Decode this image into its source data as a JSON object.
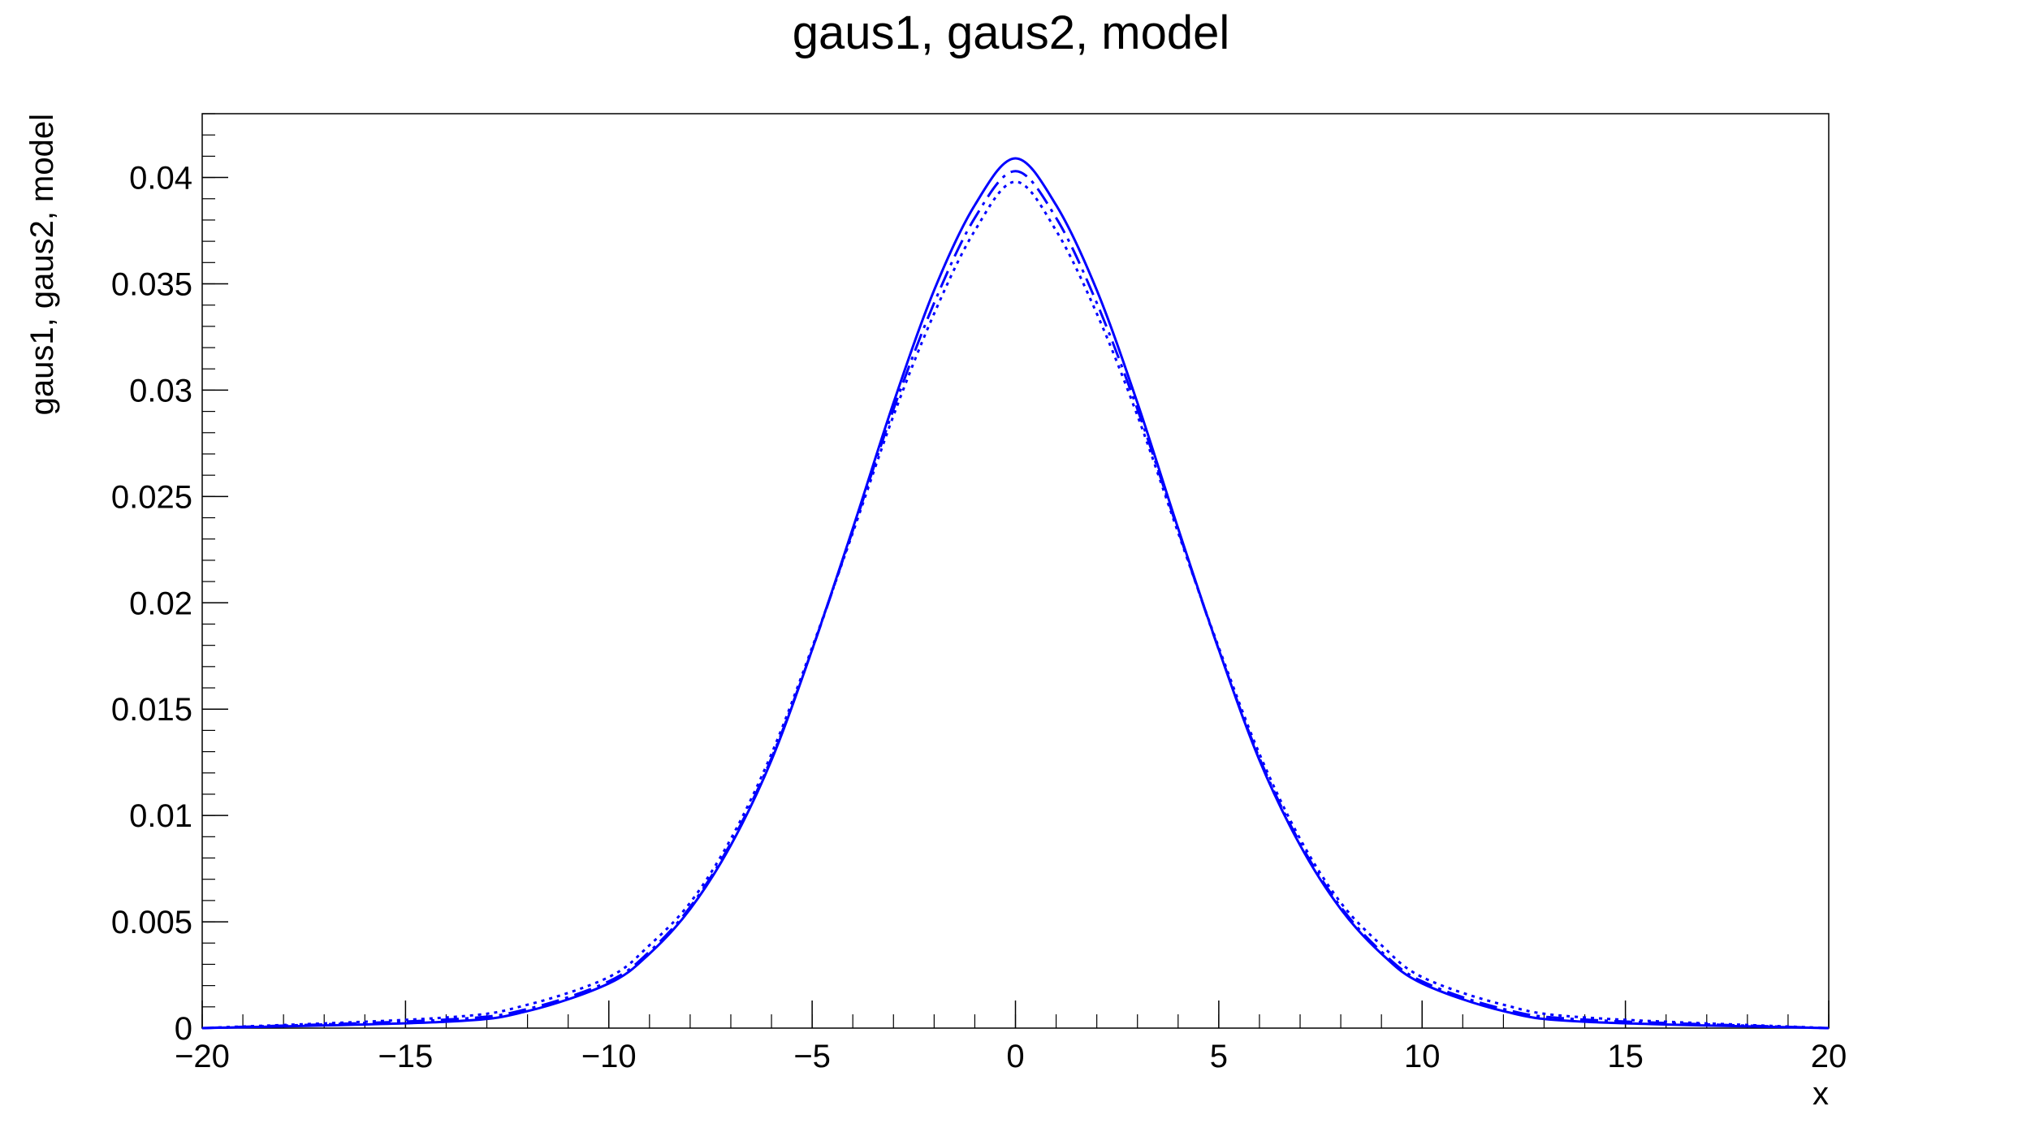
{
  "chart_data": {
    "type": "line",
    "title": "gaus1, gaus2, model",
    "xlabel": "x",
    "ylabel": "gaus1, gaus2, model",
    "xlim": [
      -20,
      20
    ],
    "ylim": [
      0,
      0.043
    ],
    "x_ticks": [
      -20,
      -15,
      -10,
      -5,
      0,
      5,
      10,
      15,
      20
    ],
    "x_tick_labels": [
      "−20",
      "−15",
      "−10",
      "−5",
      "0",
      "5",
      "10",
      "15",
      "20"
    ],
    "y_ticks": [
      0,
      0.005,
      0.01,
      0.015,
      0.02,
      0.025,
      0.03,
      0.035,
      0.04
    ],
    "y_tick_labels": [
      "0",
      "0.005",
      "0.01",
      "0.015",
      "0.02",
      "0.025",
      "0.03",
      "0.035",
      "0.04"
    ],
    "grid": false,
    "line_color": "#0000ff",
    "series": [
      {
        "style": "solid",
        "x": [
          -20,
          -14,
          -12,
          -10,
          -9,
          -8,
          -7,
          -6,
          -5,
          -4,
          -3,
          -2,
          -1,
          0,
          1,
          2,
          3,
          4,
          5,
          6,
          7,
          8,
          9,
          10,
          12,
          14,
          20
        ],
        "y": [
          0.0,
          0.0003,
          0.0008,
          0.0021,
          0.0035,
          0.0056,
          0.0086,
          0.0126,
          0.0178,
          0.0235,
          0.0294,
          0.0347,
          0.0387,
          0.0409,
          0.0387,
          0.0347,
          0.0294,
          0.0235,
          0.0178,
          0.0126,
          0.0086,
          0.0056,
          0.0035,
          0.0021,
          0.0008,
          0.0003,
          0.0
        ]
      },
      {
        "style": "dashdot",
        "x": [
          -20,
          -14,
          -12,
          -10,
          -9,
          -8,
          -7,
          -6,
          -5,
          -4,
          -3,
          -2,
          -1,
          0,
          1,
          2,
          3,
          4,
          5,
          6,
          7,
          8,
          9,
          10,
          12,
          14,
          20
        ],
        "y": [
          0.0,
          0.0004,
          0.0009,
          0.0022,
          0.0036,
          0.0057,
          0.0087,
          0.0127,
          0.0178,
          0.0234,
          0.0291,
          0.0341,
          0.0381,
          0.0403,
          0.0381,
          0.0341,
          0.0291,
          0.0234,
          0.0178,
          0.0127,
          0.0087,
          0.0057,
          0.0036,
          0.0022,
          0.0009,
          0.0004,
          0.0
        ]
      },
      {
        "style": "dotted",
        "x": [
          -20,
          -14,
          -12,
          -10,
          -9,
          -8,
          -7,
          -6,
          -5,
          -4,
          -3,
          -2,
          -1,
          0,
          1,
          2,
          3,
          4,
          5,
          6,
          7,
          8,
          9,
          10,
          12,
          14,
          20
        ],
        "y": [
          0.0,
          0.0005,
          0.0011,
          0.0024,
          0.0039,
          0.0059,
          0.0089,
          0.0129,
          0.0179,
          0.0233,
          0.0288,
          0.0336,
          0.0375,
          0.0398,
          0.0375,
          0.0336,
          0.0288,
          0.0233,
          0.0179,
          0.0129,
          0.0089,
          0.0059,
          0.0039,
          0.0024,
          0.0011,
          0.0005,
          0.0
        ]
      }
    ]
  }
}
